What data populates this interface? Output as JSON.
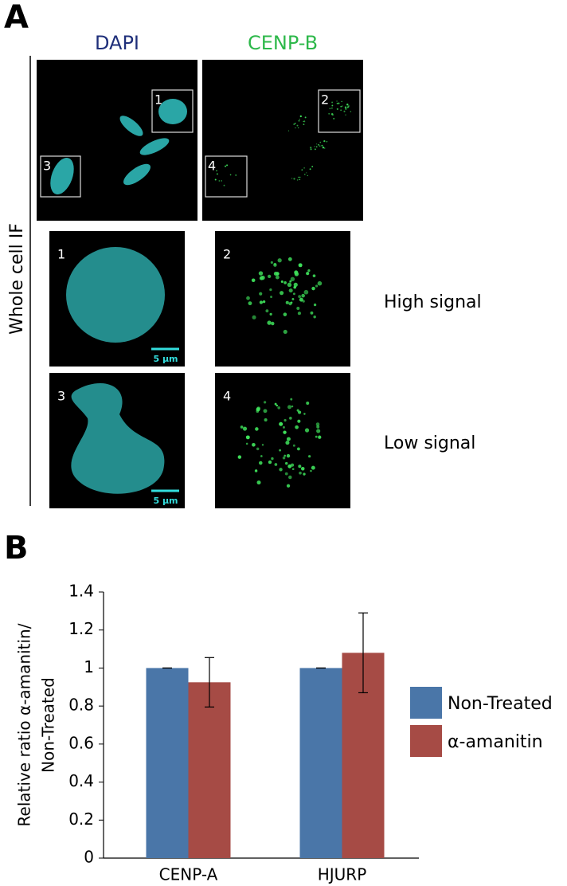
{
  "panel_a": {
    "label": "A",
    "columns": [
      "DAPI",
      "CENP-B"
    ],
    "row_label": "Whole cell IF",
    "regions": [
      "1",
      "2",
      "3",
      "4"
    ],
    "scale_bar": "5 µm",
    "signal_levels": [
      "High signal",
      "Low signal"
    ]
  },
  "panel_b": {
    "label": "B"
  },
  "chart_data": {
    "type": "bar",
    "categories": [
      "CENP-A",
      "HJURP"
    ],
    "series": [
      {
        "name": "Non-Treated",
        "color": "#4a76a8",
        "values": [
          1,
          1
        ],
        "errors": [
          0,
          0
        ]
      },
      {
        "name": "α-amanitin",
        "color": "#a64b45",
        "values": [
          0.925,
          1.08
        ],
        "errors": [
          0.13,
          0.21
        ]
      }
    ],
    "ylim": [
      0,
      1.4
    ],
    "yticks": [
      0,
      0.2,
      0.4,
      0.6,
      0.8,
      1,
      1.2,
      1.4
    ],
    "y_label": [
      "Relative ratio α-amanitin/",
      "Non-Treated"
    ],
    "legend": "right"
  }
}
